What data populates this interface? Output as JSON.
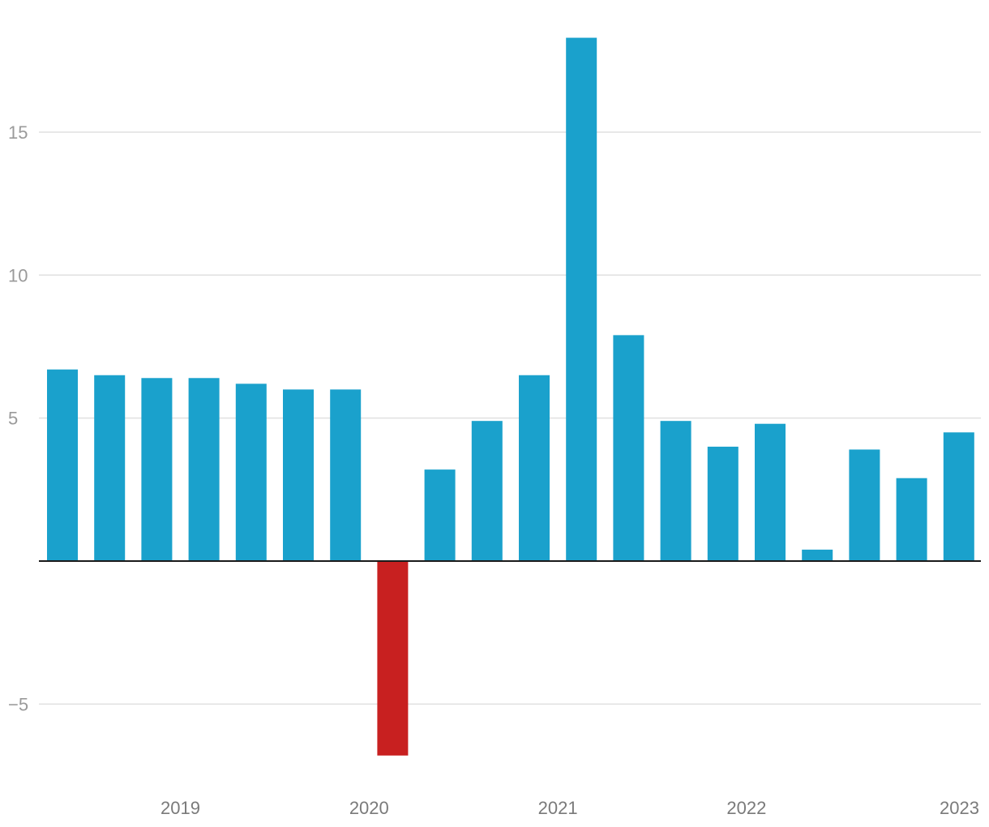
{
  "chart_data": {
    "type": "bar",
    "title": "",
    "xlabel": "",
    "ylabel": "",
    "ylim": [
      -7.5,
      19.5
    ],
    "grid": true,
    "legend": "none",
    "y_ticks": [
      -5,
      5,
      10,
      15
    ],
    "y_tick_labels": [
      "−5",
      "5",
      "10",
      "15"
    ],
    "x_tick_labels": [
      "2019",
      "2020",
      "2021",
      "2022",
      "2023"
    ],
    "x_tick_after_bar": [
      2,
      6,
      10,
      14,
      18
    ],
    "values": [
      6.7,
      6.5,
      6.4,
      6.4,
      6.2,
      6.0,
      6.0,
      -6.8,
      3.2,
      4.9,
      6.5,
      18.3,
      7.9,
      4.9,
      4.0,
      4.8,
      0.4,
      3.9,
      2.9,
      4.5
    ],
    "colors": {
      "positive": "#1aa1cc",
      "negative": "#c82020",
      "grid": "#e0e0e0",
      "zero_line": "#1a1a1a"
    }
  }
}
